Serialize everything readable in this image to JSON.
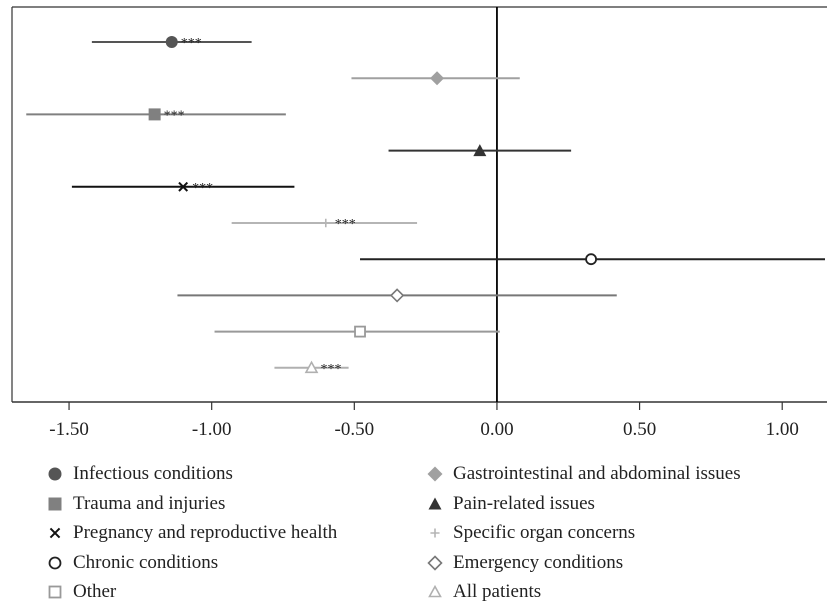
{
  "chart_data": {
    "type": "forest",
    "xlim": [
      -1.7,
      1.15
    ],
    "x_ticks": [
      -1.5,
      -1.0,
      -0.5,
      0.0,
      0.5,
      1.0
    ],
    "x_tick_labels": [
      "-1.50",
      "-1.00",
      "-0.50",
      "0.00",
      "0.50",
      "1.00"
    ],
    "reference_line": 0,
    "title": "",
    "xlabel": "",
    "ylabel": "",
    "grid": false,
    "legend_position": "bottom",
    "series": [
      {
        "name": "Infectious conditions",
        "estimate": -1.14,
        "ci_low": -1.42,
        "ci_high": -0.86,
        "significance": "***",
        "marker": "circle-filled",
        "color": "#555555"
      },
      {
        "name": "Gastrointestinal and abdominal issues",
        "estimate": -0.21,
        "ci_low": -0.51,
        "ci_high": 0.08,
        "significance": "",
        "marker": "diamond-filled",
        "color": "#a0a0a0"
      },
      {
        "name": "Trauma and injuries",
        "estimate": -1.2,
        "ci_low": -1.65,
        "ci_high": -0.74,
        "significance": "***",
        "marker": "square-filled",
        "color": "#808080"
      },
      {
        "name": "Pain-related issues",
        "estimate": -0.06,
        "ci_low": -0.38,
        "ci_high": 0.26,
        "significance": "",
        "marker": "triangle-filled",
        "color": "#333333"
      },
      {
        "name": "Pregnancy and reproductive health",
        "estimate": -1.1,
        "ci_low": -1.49,
        "ci_high": -0.71,
        "significance": "***",
        "marker": "x",
        "color": "#111111"
      },
      {
        "name": "Specific organ concerns",
        "estimate": -0.6,
        "ci_low": -0.93,
        "ci_high": -0.28,
        "significance": "***",
        "marker": "plus",
        "color": "#b5b5b5"
      },
      {
        "name": "Chronic conditions",
        "estimate": 0.33,
        "ci_low": -0.48,
        "ci_high": 1.15,
        "significance": "",
        "marker": "circle-open",
        "color": "#222222"
      },
      {
        "name": "Emergency conditions",
        "estimate": -0.35,
        "ci_low": -1.12,
        "ci_high": 0.42,
        "significance": "",
        "marker": "diamond-open",
        "color": "#777777"
      },
      {
        "name": "Other",
        "estimate": -0.48,
        "ci_low": -0.99,
        "ci_high": 0.01,
        "significance": "",
        "marker": "square-open",
        "color": "#999999"
      },
      {
        "name": "All patients",
        "estimate": -0.65,
        "ci_low": -0.78,
        "ci_high": -0.52,
        "significance": "***",
        "marker": "triangle-open",
        "color": "#b0b0b0"
      }
    ],
    "legend_order": [
      0,
      1,
      2,
      3,
      4,
      5,
      6,
      7,
      8,
      9
    ]
  }
}
